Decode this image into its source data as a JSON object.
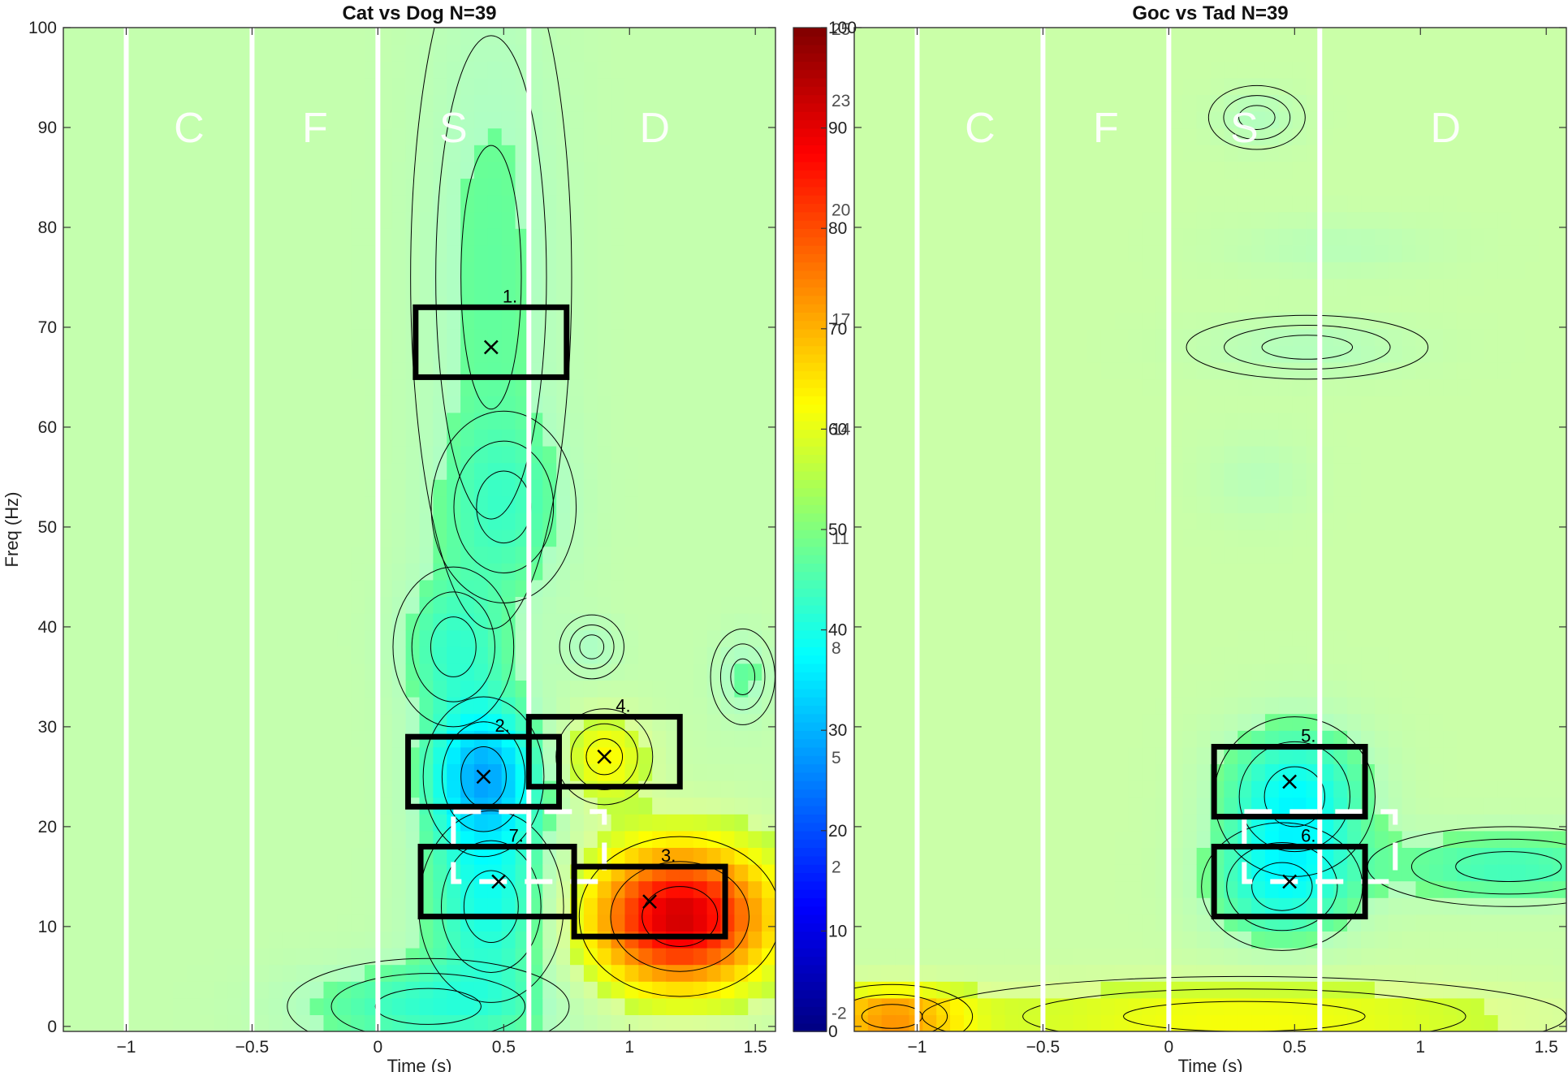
{
  "chart_data": [
    {
      "type": "heatmap",
      "title": "Cat vs Dog N=39",
      "xlabel": "Time (s)",
      "ylabel": "Freq (Hz)",
      "xlim": [
        -1.25,
        1.58
      ],
      "ylim": [
        -0.5,
        100
      ],
      "xticks": [
        -1,
        -0.5,
        0,
        0.5,
        1,
        1.5
      ],
      "xtick_labels": [
        "−1",
        "−0.5",
        "0",
        "0.5",
        "1",
        "1.5"
      ],
      "yticks": [
        0,
        10,
        20,
        30,
        40,
        50,
        60,
        70,
        80,
        90,
        100
      ],
      "ytick_labels": [
        "0",
        "10",
        "20",
        "30",
        "40",
        "50",
        "60",
        "70",
        "80",
        "90",
        "100"
      ],
      "background_value": 52,
      "phase_boundaries": [
        -1,
        -0.5,
        0,
        0.6
      ],
      "phase_labels": [
        {
          "text": "C",
          "t": -0.75,
          "f": 90
        },
        {
          "text": "F",
          "t": -0.25,
          "f": 90
        },
        {
          "text": "S",
          "t": 0.3,
          "f": 90
        },
        {
          "text": "D",
          "t": 1.1,
          "f": 90
        }
      ],
      "blobs": [
        {
          "t": 0.45,
          "f": 75,
          "st": 0.2,
          "sf": 22,
          "value": 47
        },
        {
          "t": 0.5,
          "f": 52,
          "st": 0.18,
          "sf": 6,
          "value": 46
        },
        {
          "t": 0.3,
          "f": 38,
          "st": 0.15,
          "sf": 5,
          "value": 44
        },
        {
          "t": 0.42,
          "f": 25,
          "st": 0.15,
          "sf": 5,
          "value": 30
        },
        {
          "t": 0.45,
          "f": 12,
          "st": 0.18,
          "sf": 6,
          "value": 40
        },
        {
          "t": 0.9,
          "f": 27,
          "st": 0.12,
          "sf": 3,
          "value": 63
        },
        {
          "t": 1.2,
          "f": 11,
          "st": 0.25,
          "sf": 5,
          "value": 92
        },
        {
          "t": 0.2,
          "f": 2,
          "st": 0.35,
          "sf": 3,
          "value": 43
        },
        {
          "t": 1.45,
          "f": 35,
          "st": 0.08,
          "sf": 3,
          "value": 47
        },
        {
          "t": 0.85,
          "f": 38,
          "st": 0.08,
          "sf": 2,
          "value": 48
        }
      ],
      "boxes": [
        {
          "label": "1.",
          "t0": 0.15,
          "t1": 0.75,
          "f0": 65,
          "f1": 72,
          "peak_t": 0.45,
          "peak_f": 68
        },
        {
          "label": "2.",
          "t0": 0.12,
          "t1": 0.72,
          "f0": 22,
          "f1": 29,
          "peak_t": 0.42,
          "peak_f": 25
        },
        {
          "label": "3.",
          "t0": 0.78,
          "t1": 1.38,
          "f0": 9,
          "f1": 16,
          "peak_t": 1.08,
          "peak_f": 12.5
        },
        {
          "label": "4.",
          "t0": 0.6,
          "t1": 1.2,
          "f0": 24,
          "f1": 31,
          "peak_t": 0.9,
          "peak_f": 27
        },
        {
          "label": "7.",
          "t0": 0.17,
          "t1": 0.78,
          "f0": 11,
          "f1": 18,
          "peak_t": 0.48,
          "peak_f": 14.5
        }
      ],
      "dashed_boxes": [
        {
          "t0": 0.3,
          "t1": 0.9,
          "f0": 14.5,
          "f1": 21.5
        }
      ]
    },
    {
      "type": "heatmap",
      "title": "Goc vs Tad N=39",
      "xlabel": "Time (s)",
      "ylabel": "Freq (Hz)",
      "xlim": [
        -1.25,
        1.58
      ],
      "ylim": [
        -0.5,
        100
      ],
      "xticks": [
        -1,
        -0.5,
        0,
        0.5,
        1,
        1.5
      ],
      "xtick_labels": [
        "−1",
        "−0.5",
        "0",
        "0.5",
        "1",
        "1.5"
      ],
      "yticks": [
        0,
        10,
        20,
        30,
        40,
        50,
        60,
        70,
        80,
        90,
        100
      ],
      "ytick_labels": [
        "0",
        "10",
        "20",
        "30",
        "40",
        "50",
        "60",
        "70",
        "80",
        "90",
        "100"
      ],
      "background_value": 53,
      "phase_boundaries": [
        -1,
        -0.5,
        0,
        0.6
      ],
      "phase_labels": [
        {
          "text": "C",
          "t": -0.75,
          "f": 90
        },
        {
          "text": "F",
          "t": -0.25,
          "f": 90
        },
        {
          "text": "S",
          "t": 0.3,
          "f": 90
        },
        {
          "text": "D",
          "t": 1.1,
          "f": 90
        }
      ],
      "blobs": [
        {
          "t": 0.5,
          "f": 23,
          "st": 0.2,
          "sf": 5,
          "value": 38
        },
        {
          "t": 0.45,
          "f": 14,
          "st": 0.2,
          "sf": 4,
          "value": 41
        },
        {
          "t": 1.35,
          "f": 16,
          "st": 0.35,
          "sf": 2.5,
          "value": 44
        },
        {
          "t": 0.55,
          "f": 68,
          "st": 0.3,
          "sf": 2,
          "value": 49
        },
        {
          "t": 0.65,
          "f": 78,
          "st": 0.3,
          "sf": 2,
          "value": 50
        },
        {
          "t": 0.35,
          "f": 91,
          "st": 0.12,
          "sf": 2,
          "value": 49
        },
        {
          "t": 0.3,
          "f": 1,
          "st": 0.8,
          "sf": 2.5,
          "value": 62
        },
        {
          "t": -1.1,
          "f": 1,
          "st": 0.2,
          "sf": 2,
          "value": 72
        },
        {
          "t": 0.35,
          "f": 55,
          "st": 0.15,
          "sf": 3,
          "value": 50
        }
      ],
      "boxes": [
        {
          "label": "5.",
          "t0": 0.18,
          "t1": 0.78,
          "f0": 21,
          "f1": 28,
          "peak_t": 0.48,
          "peak_f": 24.5
        },
        {
          "label": "6.",
          "t0": 0.18,
          "t1": 0.78,
          "f0": 11,
          "f1": 18,
          "peak_t": 0.48,
          "peak_f": 14.5
        }
      ],
      "dashed_boxes": [
        {
          "t0": 0.3,
          "t1": 0.9,
          "f0": 14.5,
          "f1": 21.5
        }
      ]
    }
  ],
  "colorbar": {
    "ticks_outer": [
      0,
      10,
      20,
      30,
      40,
      50,
      60,
      70,
      80,
      90,
      100
    ],
    "ticks_outer_labels": [
      "0",
      "10",
      "20",
      "30",
      "40",
      "50",
      "60",
      "70",
      "80",
      "90",
      "100"
    ],
    "ticks_inner": [
      -2,
      2,
      5,
      8,
      11,
      14,
      17,
      20,
      23
    ],
    "ticks_inner_labels": [
      "-2",
      "2",
      "5",
      "8",
      "11",
      "14",
      "17",
      "20",
      "23"
    ],
    "ticks_inner_range": [
      -2.5,
      25
    ],
    "ticks_inner_label_top": "25",
    "colormap": "jet"
  }
}
